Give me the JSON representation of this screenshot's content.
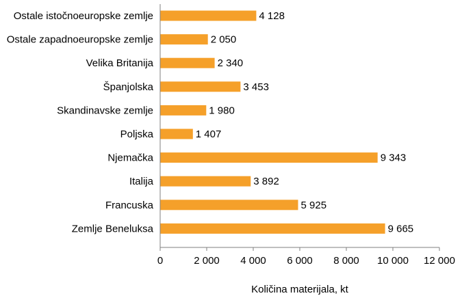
{
  "chart_data": {
    "type": "bar",
    "orientation": "horizontal",
    "categories": [
      "Ostale istočnoeuropske zemlje",
      "Ostale zapadnoeuropske zemlje",
      "Velika Britanija",
      "Španjolska",
      "Skandinavske zemlje",
      "Poljska",
      "Njemačka",
      "Italija",
      "Francuska",
      "Zemlje Beneluksa"
    ],
    "values": [
      4128,
      2050,
      2340,
      3453,
      1980,
      1407,
      9343,
      3892,
      5925,
      9665
    ],
    "value_labels": [
      "4 128",
      "2 050",
      "2 340",
      "3 453",
      "1 980",
      "1 407",
      "9 343",
      "3 892",
      "5 925",
      "9 665"
    ],
    "xticks": [
      0,
      2000,
      4000,
      6000,
      8000,
      10000,
      12000
    ],
    "xtick_labels": [
      "0",
      "2 000",
      "4 000",
      "6 000",
      "8 000",
      "10 000",
      "12 000"
    ],
    "xlim": [
      0,
      12000
    ],
    "xlabel": "Količina materijala, kt",
    "ylabel": "",
    "title": "",
    "grid": false,
    "legend": "none",
    "bar_color": "#F5A02A"
  }
}
